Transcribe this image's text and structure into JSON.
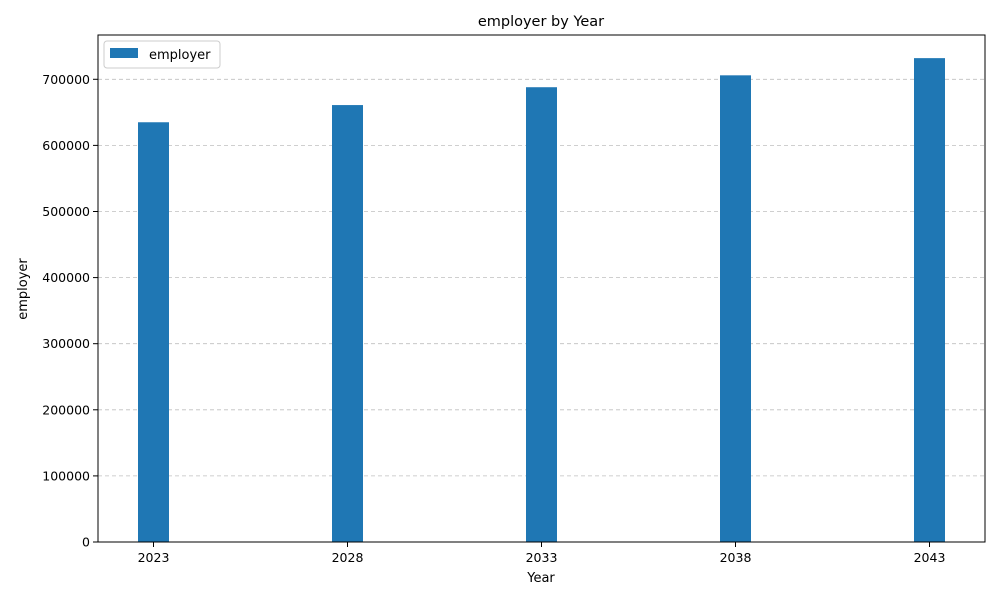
{
  "chart_data": {
    "type": "bar",
    "title": "employer by Year",
    "xlabel": "Year",
    "ylabel": "employer",
    "categories": [
      "2023",
      "2028",
      "2033",
      "2038",
      "2043"
    ],
    "series": [
      {
        "name": "employer",
        "values": [
          635000,
          661000,
          688000,
          706000,
          732000
        ],
        "color": "#1f77b4"
      }
    ],
    "ylim": [
      0,
      767000
    ],
    "yticks": [
      0,
      100000,
      200000,
      300000,
      400000,
      500000,
      600000,
      700000
    ],
    "grid": "y-dashed",
    "legend_position": "top-left"
  }
}
